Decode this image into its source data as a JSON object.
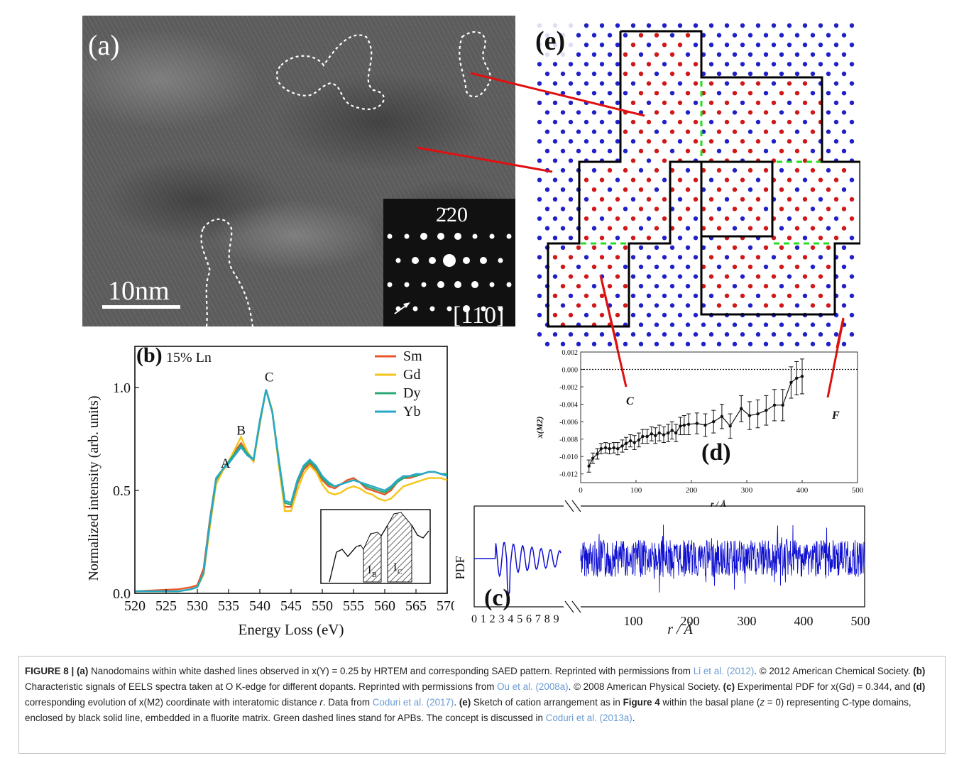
{
  "panel_a": {
    "label": "(a)",
    "scale_bar": "10nm",
    "inset_reflection": "2̄20",
    "inset_zone_axis": "[110]"
  },
  "panel_e": {
    "label": "(e)",
    "pointer_labels": [
      "C",
      "F"
    ],
    "colors": {
      "cation_a": "#2020c8",
      "cation_b": "#d01818",
      "domain_border": "#000000",
      "apb": "#22dd22",
      "pointer": "#e01010"
    }
  },
  "chart_data": [
    {
      "id": "b",
      "type": "line",
      "panel_label": "(b)",
      "annotation": "15% Ln",
      "xlabel": "Energy Loss (eV)",
      "ylabel": "Normalized intensity (arb. units)",
      "xlim": [
        520,
        570
      ],
      "ylim": [
        0,
        1.2
      ],
      "xticks": [
        520,
        525,
        530,
        535,
        540,
        545,
        550,
        555,
        560,
        565,
        570
      ],
      "yticks": [
        0.0,
        0.5,
        1.0
      ],
      "ytick_labels": [
        "0.0",
        "0.5",
        "1.0"
      ],
      "peak_labels": [
        {
          "text": "A",
          "x": 534.5,
          "y": 0.61
        },
        {
          "text": "B",
          "x": 537.0,
          "y": 0.77
        },
        {
          "text": "C",
          "x": 541.5,
          "y": 1.03
        }
      ],
      "legend_position": "top-right",
      "inset_labels": [
        "I",
        "B",
        "I",
        "C"
      ],
      "x": [
        520,
        527,
        529,
        530,
        531,
        532,
        533,
        534,
        535,
        536,
        537,
        538,
        539,
        540,
        541,
        542,
        543,
        544,
        545,
        546,
        547,
        548,
        549,
        550,
        551,
        552,
        553,
        554,
        555,
        556,
        557,
        558,
        559,
        560,
        561,
        562,
        563,
        564,
        565,
        566,
        567,
        568,
        569,
        570
      ],
      "series": [
        {
          "name": "Sm",
          "color": "#e8572a",
          "values": [
            0.01,
            0.02,
            0.03,
            0.04,
            0.12,
            0.36,
            0.56,
            0.6,
            0.64,
            0.69,
            0.73,
            0.68,
            0.64,
            0.83,
            0.99,
            0.88,
            0.64,
            0.42,
            0.42,
            0.53,
            0.6,
            0.63,
            0.6,
            0.55,
            0.52,
            0.51,
            0.53,
            0.55,
            0.56,
            0.54,
            0.51,
            0.5,
            0.49,
            0.48,
            0.5,
            0.54,
            0.56,
            0.56,
            0.57,
            0.58,
            0.59,
            0.59,
            0.58,
            0.58
          ]
        },
        {
          "name": "Gd",
          "color": "#f5c518",
          "values": [
            0.01,
            0.01,
            0.02,
            0.03,
            0.09,
            0.32,
            0.53,
            0.59,
            0.64,
            0.7,
            0.76,
            0.69,
            0.64,
            0.82,
            0.99,
            0.89,
            0.63,
            0.4,
            0.4,
            0.5,
            0.58,
            0.62,
            0.59,
            0.53,
            0.49,
            0.48,
            0.49,
            0.51,
            0.52,
            0.51,
            0.49,
            0.48,
            0.46,
            0.45,
            0.46,
            0.49,
            0.52,
            0.53,
            0.54,
            0.55,
            0.56,
            0.56,
            0.56,
            0.55
          ]
        },
        {
          "name": "Dy",
          "color": "#2aa876",
          "values": [
            0.01,
            0.01,
            0.02,
            0.03,
            0.1,
            0.34,
            0.55,
            0.6,
            0.64,
            0.68,
            0.72,
            0.68,
            0.65,
            0.83,
            0.99,
            0.88,
            0.65,
            0.44,
            0.43,
            0.54,
            0.61,
            0.64,
            0.61,
            0.56,
            0.53,
            0.52,
            0.53,
            0.54,
            0.55,
            0.54,
            0.52,
            0.51,
            0.5,
            0.49,
            0.51,
            0.54,
            0.56,
            0.57,
            0.57,
            0.58,
            0.59,
            0.59,
            0.58,
            0.58
          ]
        },
        {
          "name": "Yb",
          "color": "#26a9c9",
          "values": [
            0.01,
            0.01,
            0.02,
            0.03,
            0.1,
            0.35,
            0.56,
            0.6,
            0.63,
            0.67,
            0.71,
            0.67,
            0.65,
            0.84,
            0.99,
            0.88,
            0.66,
            0.45,
            0.44,
            0.55,
            0.62,
            0.65,
            0.62,
            0.57,
            0.54,
            0.52,
            0.53,
            0.54,
            0.55,
            0.54,
            0.53,
            0.52,
            0.51,
            0.5,
            0.52,
            0.55,
            0.57,
            0.57,
            0.58,
            0.58,
            0.59,
            0.59,
            0.58,
            0.57
          ]
        }
      ]
    },
    {
      "id": "d",
      "type": "line",
      "panel_label": "(d)",
      "xlabel": "r / Å",
      "ylabel": "x(M2)",
      "xlim": [
        0,
        500
      ],
      "ylim": [
        -0.013,
        0.002
      ],
      "xticks": [
        0,
        100,
        200,
        300,
        400,
        500
      ],
      "yticks": [
        0.002,
        0.0,
        -0.002,
        -0.004,
        -0.006,
        -0.008,
        -0.01,
        -0.012
      ],
      "ytick_labels": [
        "0.002",
        "0.000",
        "-0.002",
        "-0.004",
        "-0.006",
        "-0.008",
        "-0.010",
        "-0.012"
      ],
      "reference_line": 0.0,
      "x": [
        15,
        22,
        30,
        37,
        45,
        52,
        60,
        67,
        75,
        82,
        90,
        97,
        105,
        112,
        120,
        128,
        135,
        142,
        150,
        158,
        165,
        172,
        180,
        187,
        195,
        210,
        225,
        240,
        255,
        270,
        290,
        305,
        320,
        335,
        350,
        365,
        380,
        390,
        400
      ],
      "values": [
        -0.0111,
        -0.0102,
        -0.0097,
        -0.0091,
        -0.009,
        -0.0091,
        -0.009,
        -0.0091,
        -0.0088,
        -0.0085,
        -0.0082,
        -0.0084,
        -0.0081,
        -0.0077,
        -0.0077,
        -0.0074,
        -0.0076,
        -0.0073,
        -0.0075,
        -0.0073,
        -0.007,
        -0.0073,
        -0.0065,
        -0.0064,
        -0.0063,
        -0.0062,
        -0.0064,
        -0.006,
        -0.0054,
        -0.0065,
        -0.0045,
        -0.0053,
        -0.0051,
        -0.0047,
        -0.0041,
        -0.0041,
        -0.0015,
        -0.001,
        -0.0008
      ],
      "errors": [
        0.0007,
        0.0006,
        0.0006,
        0.0006,
        0.0006,
        0.0006,
        0.0006,
        0.0007,
        0.0007,
        0.0007,
        0.0007,
        0.0008,
        0.0008,
        0.0008,
        0.0008,
        0.0008,
        0.0009,
        0.0009,
        0.0009,
        0.001,
        0.001,
        0.001,
        0.001,
        0.0011,
        0.0012,
        0.0012,
        0.0013,
        0.0013,
        0.0014,
        0.0014,
        0.0015,
        0.0016,
        0.0016,
        0.0017,
        0.0018,
        0.0018,
        0.0018,
        0.0019,
        0.002
      ]
    },
    {
      "id": "c",
      "type": "line",
      "panel_label": "(c)",
      "ylabel": "PDF",
      "xlabel": "r / Å",
      "color": "#1010d0",
      "left_segment": {
        "xlim": [
          0,
          9.5
        ],
        "xticks": [
          0,
          1,
          2,
          3,
          4,
          5,
          6,
          7,
          8,
          9
        ]
      },
      "right_segment": {
        "xlim": [
          0,
          500
        ],
        "xticks": [
          100,
          200,
          300,
          400,
          500
        ]
      }
    }
  ],
  "caption": {
    "figure_label": "FIGURE 8 |",
    "a_label": "(a)",
    "a_text": " Nanodomains within white dashed lines observed in x(Y) = 0.25 by HRTEM and corresponding SAED pattern. Reprinted with permissions from ",
    "a_cite": "Li et al. (2012)",
    "a_copy": ". © 2012 American Chemical Society. ",
    "b_label": "(b)",
    "b_text": " Characteristic signals of EELS spectra taken at O K-edge for different dopants. Reprinted with permissions from ",
    "b_cite": "Ou et al. (2008a)",
    "b_copy": ". © 2008 American Physical Society. ",
    "c_label": "(c)",
    "c_text": " Experimental PDF for x(Gd) = 0.344, and ",
    "d_label": "(d)",
    "d_text": " corresponding evolution of x(M2) coordinate with interatomic distance ",
    "d_r": "r",
    "d_text2": ". Data from ",
    "d_cite": "Coduri et al. (2017)",
    "d_end": ". ",
    "e_label": "(e)",
    "e_text": " Sketch of cation arrangement as in ",
    "e_fig": "Figure 4",
    "e_text2": " within the basal plane (",
    "e_z": "z",
    "e_text3": " = 0) representing C-type domains, enclosed by black solid line, embedded in a fluorite matrix. Green dashed lines stand for APBs. The concept is discussed in ",
    "e_cite": "Coduri et al. (2013a)",
    "e_end": "."
  }
}
